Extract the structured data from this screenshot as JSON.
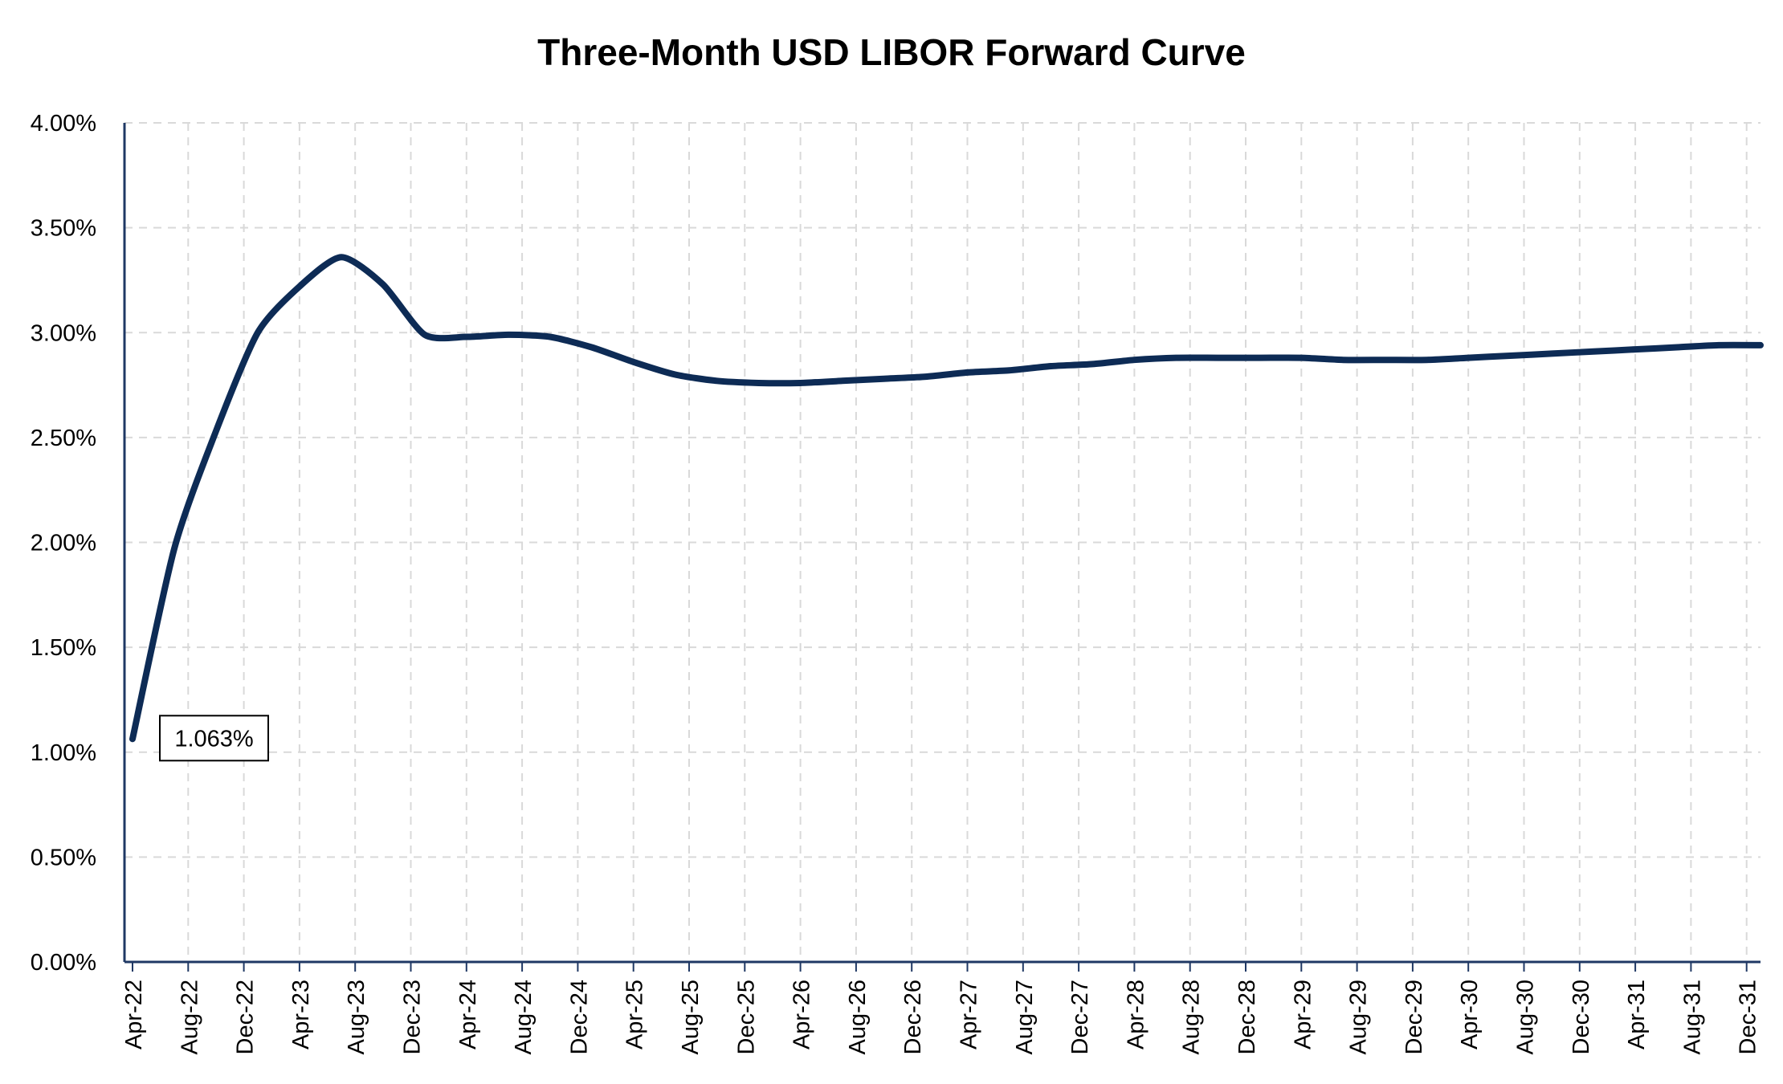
{
  "chart_data": {
    "type": "line",
    "title": "Three-Month USD LIBOR Forward Curve",
    "xlabel": "",
    "ylabel": "",
    "ylim": [
      0,
      0.04
    ],
    "yticks": [
      "0.00%",
      "0.50%",
      "1.00%",
      "1.50%",
      "2.00%",
      "2.50%",
      "3.00%",
      "3.50%",
      "4.00%"
    ],
    "categories": [
      "Apr-22",
      "Aug-22",
      "Dec-22",
      "Apr-23",
      "Aug-23",
      "Dec-23",
      "Apr-24",
      "Aug-24",
      "Dec-24",
      "Apr-25",
      "Aug-25",
      "Dec-25",
      "Apr-26",
      "Aug-26",
      "Dec-26",
      "Apr-27",
      "Aug-27",
      "Dec-27",
      "Apr-28",
      "Aug-28",
      "Dec-28",
      "Apr-29",
      "Aug-29",
      "Dec-29",
      "Apr-30",
      "Aug-30",
      "Dec-30",
      "Apr-31",
      "Aug-31",
      "Dec-31"
    ],
    "grid": true,
    "legend": "none",
    "series": [
      {
        "color": "#0d2b55",
        "x": [
          "Apr-22",
          "Jul-22",
          "Oct-22",
          "Jan-23",
          "Apr-23",
          "Jul-23",
          "Oct-23",
          "Jan-24",
          "Apr-24",
          "Jul-24",
          "Oct-24",
          "Jan-25",
          "Apr-25",
          "Jul-25",
          "Oct-25",
          "Jan-26",
          "Apr-26",
          "Jul-26",
          "Oct-26",
          "Jan-27",
          "Apr-27",
          "Jul-27",
          "Oct-27",
          "Jan-28",
          "Apr-28",
          "Jul-28",
          "Oct-28",
          "Jan-29",
          "Apr-29",
          "Jul-29",
          "Oct-29",
          "Jan-30",
          "Apr-30",
          "Jul-30",
          "Oct-30",
          "Jan-31",
          "Apr-31",
          "Jul-31",
          "Oct-31",
          "Jan-32"
        ],
        "values": [
          0.01063,
          0.0197,
          0.0253,
          0.03,
          0.0322,
          0.0336,
          0.0323,
          0.0299,
          0.0298,
          0.0299,
          0.0298,
          0.0293,
          0.0286,
          0.028,
          0.0277,
          0.0276,
          0.0276,
          0.0277,
          0.0278,
          0.0279,
          0.0281,
          0.0282,
          0.0284,
          0.0285,
          0.0287,
          0.0288,
          0.0288,
          0.0288,
          0.0288,
          0.0287,
          0.0287,
          0.0287,
          0.0288,
          0.0289,
          0.029,
          0.0291,
          0.0292,
          0.0293,
          0.0294,
          0.0294
        ]
      }
    ],
    "annotations": [
      {
        "text": "1.063%",
        "x": "Apr-22",
        "y": 0.01063
      }
    ]
  }
}
